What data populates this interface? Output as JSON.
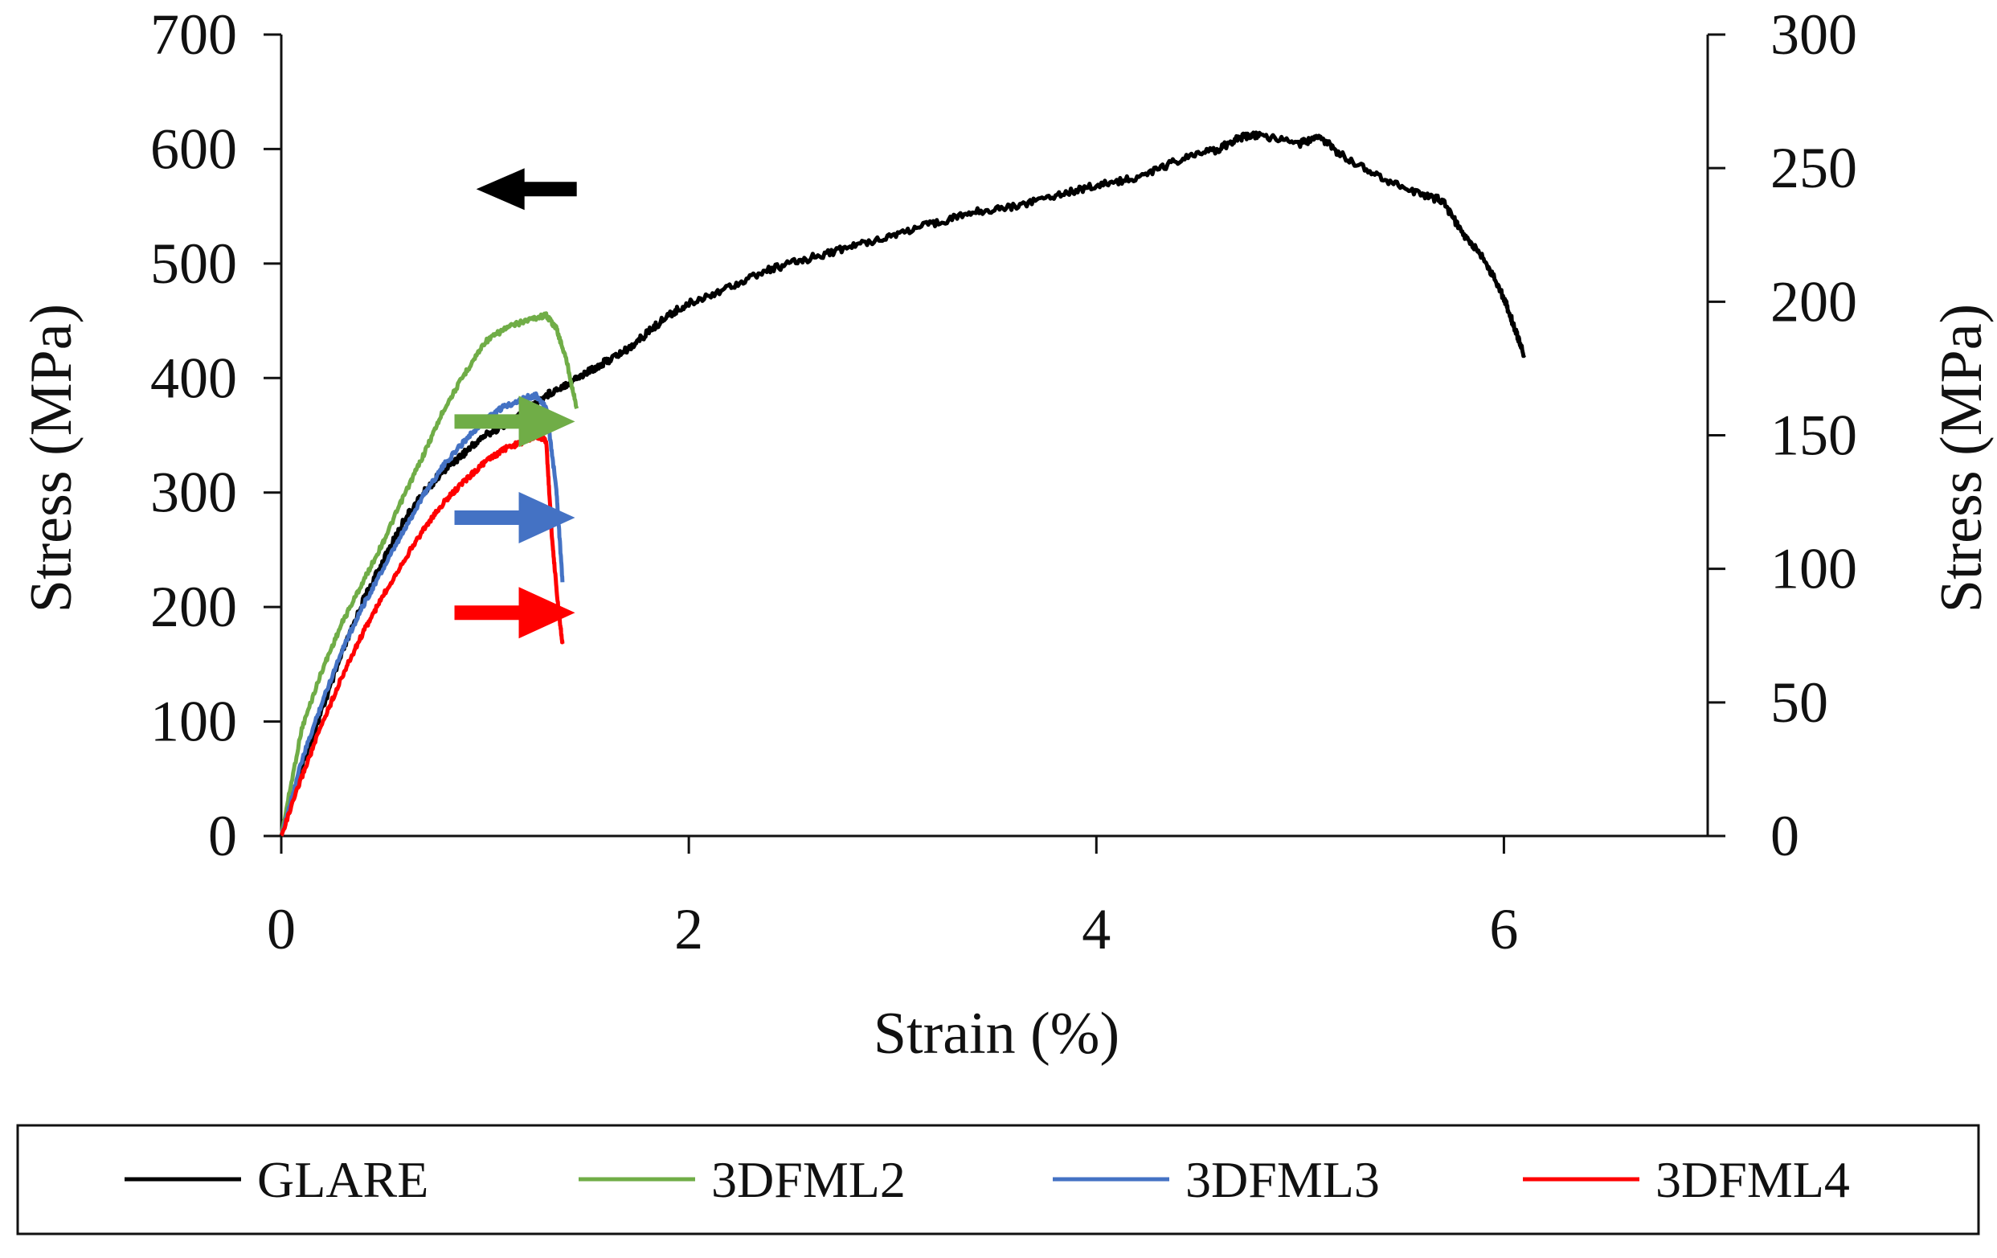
{
  "chart_data": {
    "type": "line",
    "title": "",
    "xlabel": "Strain (%)",
    "ylabel_left": "Stress (MPa)",
    "ylabel_right": "Stress (MPa)",
    "xlim": [
      0,
      7
    ],
    "ylim_left": [
      0,
      700
    ],
    "ylim_right": [
      0,
      300
    ],
    "xticks": [
      0,
      2,
      4,
      6
    ],
    "yticks_left": [
      0,
      100,
      200,
      300,
      400,
      500,
      600,
      700
    ],
    "yticks_right": [
      0,
      50,
      100,
      150,
      200,
      250,
      300
    ],
    "grid": false,
    "legend_position": "bottom",
    "series": [
      {
        "name": "GLARE",
        "axis": "left",
        "color": "#000000",
        "x": [
          0,
          0.1,
          0.2,
          0.3,
          0.4,
          0.5,
          0.6,
          0.7,
          0.8,
          0.9,
          1.0,
          1.1,
          1.2,
          1.3,
          1.4,
          1.5,
          1.6,
          1.7,
          1.8,
          1.9,
          2.0,
          2.2,
          2.4,
          2.6,
          2.8,
          3.0,
          3.2,
          3.4,
          3.6,
          3.8,
          4.0,
          4.2,
          4.4,
          4.6,
          4.7,
          4.8,
          5.0,
          5.1,
          5.2,
          5.4,
          5.6,
          5.7,
          5.8,
          5.9,
          6.0,
          6.05,
          6.1
        ],
        "y": [
          0,
          60,
          110,
          160,
          205,
          240,
          275,
          300,
          320,
          335,
          350,
          360,
          370,
          385,
          395,
          405,
          415,
          425,
          440,
          455,
          465,
          480,
          495,
          505,
          515,
          525,
          535,
          545,
          550,
          560,
          568,
          575,
          590,
          600,
          610,
          612,
          605,
          610,
          595,
          575,
          560,
          555,
          525,
          505,
          470,
          445,
          420
        ]
      },
      {
        "name": "3DFML2",
        "axis": "right",
        "color": "#70ad47",
        "x": [
          0,
          0.1,
          0.2,
          0.3,
          0.4,
          0.5,
          0.6,
          0.7,
          0.8,
          0.9,
          1.0,
          1.1,
          1.2,
          1.3,
          1.35,
          1.4,
          1.45
        ],
        "y": [
          0,
          40,
          62,
          80,
          95,
          110,
          127,
          143,
          160,
          173,
          185,
          190,
          193,
          195,
          190,
          178,
          160
        ]
      },
      {
        "name": "3DFML3",
        "axis": "right",
        "color": "#4472c4",
        "x": [
          0,
          0.1,
          0.2,
          0.3,
          0.4,
          0.5,
          0.6,
          0.7,
          0.8,
          0.9,
          1.0,
          1.1,
          1.2,
          1.25,
          1.3,
          1.35,
          1.38
        ],
        "y": [
          0,
          28,
          50,
          70,
          86,
          100,
          114,
          128,
          139,
          148,
          156,
          161,
          164,
          165,
          160,
          130,
          95
        ]
      },
      {
        "name": "3DFML4",
        "axis": "right",
        "color": "#ff0000",
        "x": [
          0,
          0.1,
          0.2,
          0.3,
          0.4,
          0.5,
          0.6,
          0.7,
          0.8,
          0.9,
          1.0,
          1.1,
          1.2,
          1.25,
          1.3,
          1.33,
          1.36,
          1.38
        ],
        "y": [
          0,
          22,
          42,
          60,
          76,
          90,
          103,
          115,
          125,
          133,
          140,
          145,
          148,
          150,
          148,
          110,
          85,
          72
        ]
      }
    ],
    "annotations": [
      {
        "name": "GLARE axis arrow",
        "direction": "left",
        "color": "#000000",
        "x": 1.45,
        "y_left": 565
      },
      {
        "name": "3DFML2 axis arrow",
        "direction": "right",
        "color": "#70ad47",
        "x": 0.85,
        "y_left": 362
      },
      {
        "name": "3DFML3 axis arrow",
        "direction": "right",
        "color": "#4472c4",
        "x": 0.85,
        "y_left": 278
      },
      {
        "name": "3DFML4 axis arrow",
        "direction": "right",
        "color": "#ff0000",
        "x": 0.85,
        "y_left": 195
      }
    ]
  }
}
